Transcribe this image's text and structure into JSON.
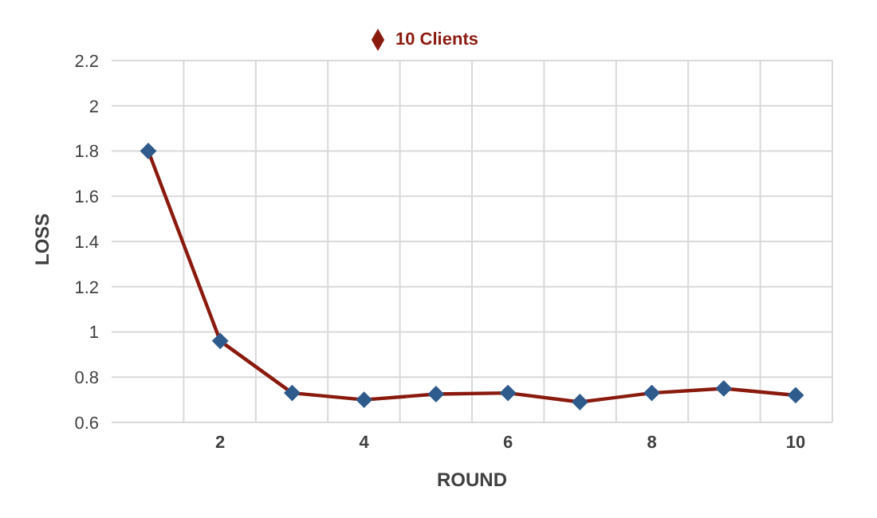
{
  "chart_data": {
    "type": "line",
    "xlabel": "ROUND",
    "ylabel": "LOSS",
    "categories": [
      null,
      "2",
      null,
      "4",
      null,
      "6",
      null,
      "8",
      null,
      "10"
    ],
    "series": [
      {
        "name": "10 Clients",
        "color": "#8b1a0e",
        "values": [
          1.8,
          0.96,
          0.73,
          0.7,
          0.725,
          0.73,
          0.69,
          0.73,
          0.75,
          0.72
        ]
      }
    ],
    "ylim": [
      0.6,
      2.2
    ],
    "yticks": [
      0.6,
      0.8,
      1,
      1.2,
      1.4,
      1.6,
      1.8,
      2,
      2.2
    ],
    "grid": true,
    "legend": "top",
    "marker": "diamond",
    "line_style": "solid"
  }
}
